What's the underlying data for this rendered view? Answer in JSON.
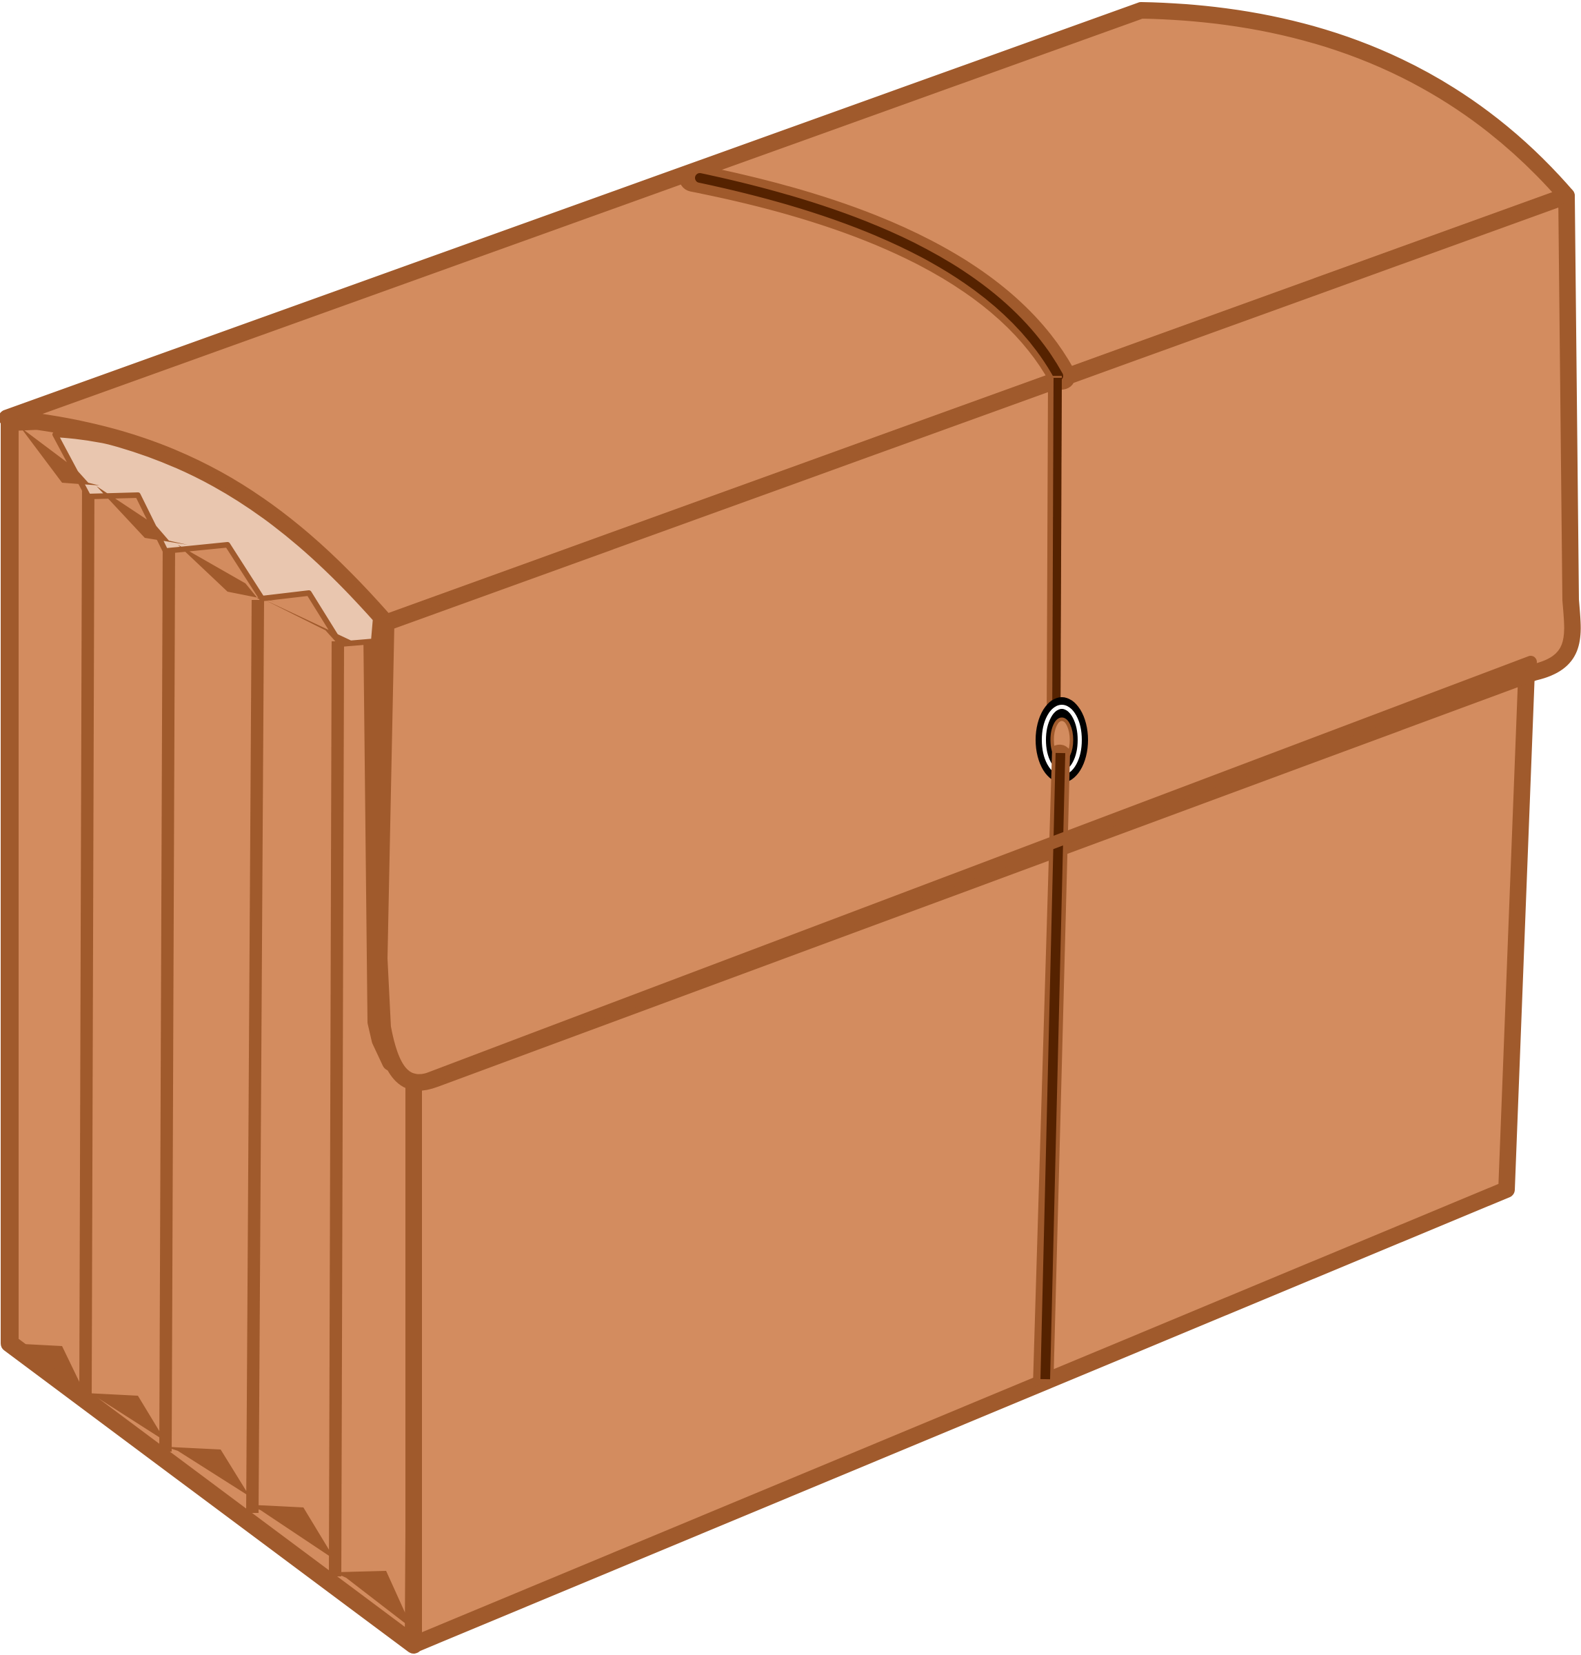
{
  "scene": {
    "subject": "expanding-file-folder",
    "icon_name": "accordion-file-icon",
    "background_color": "#ffffff"
  },
  "colors": {
    "body_fill": "#D38C5F",
    "outline": "#A05A2C",
    "gusset_highlight": "#E9C6AF",
    "elastic_cord": "#552200",
    "eyelet_ring": "#000000",
    "eyelet_inner": "#ffffff"
  },
  "parts": {
    "gusset_pleat_count": 5
  }
}
